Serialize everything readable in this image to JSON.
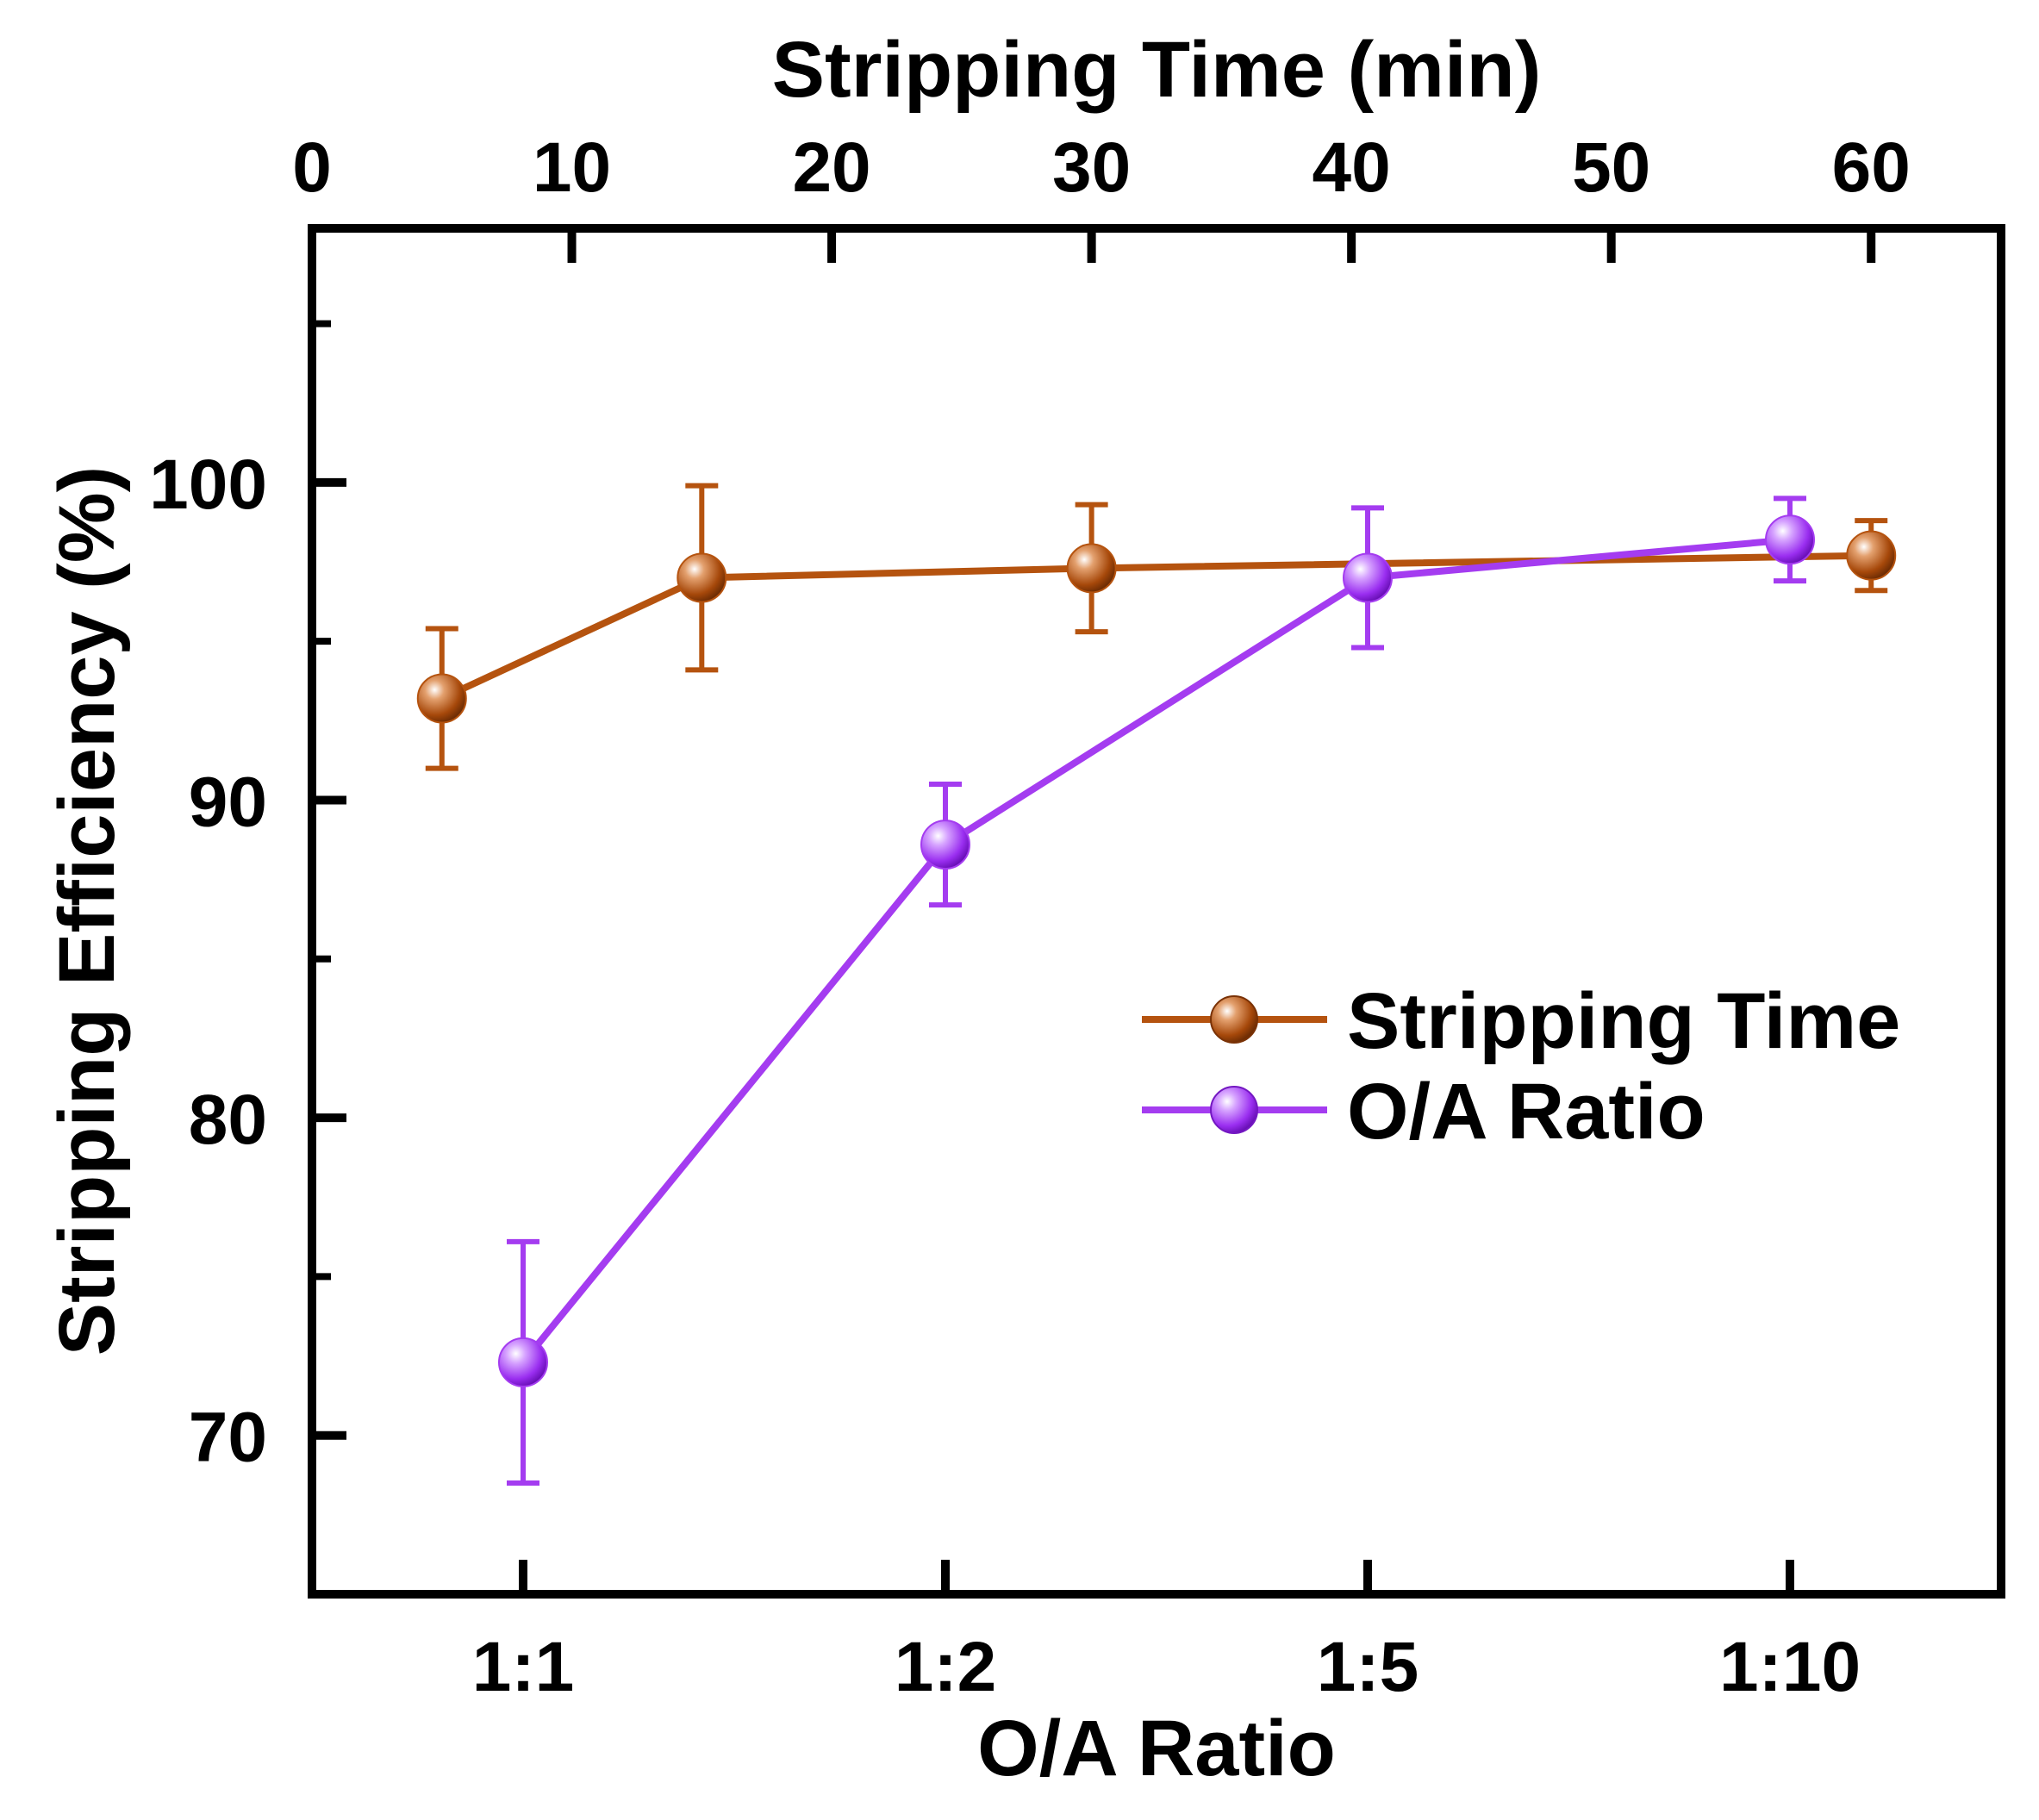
{
  "chart_data": {
    "type": "line",
    "title": "",
    "ylabel": "Stripping Efficiency (%)",
    "ylim": [
      65,
      108
    ],
    "yticks": [
      "70",
      "80",
      "90",
      "100"
    ],
    "y_minor_ticks": [
      75,
      85,
      95,
      105
    ],
    "top_axis": {
      "label": "Stripping Time (min)",
      "xlim": [
        0,
        65
      ],
      "ticks": [
        "0",
        "10",
        "20",
        "30",
        "40",
        "50",
        "60"
      ]
    },
    "bottom_axis": {
      "label": "O/A Ratio",
      "categories": [
        "1:1",
        "1:2",
        "1:5",
        "1:10"
      ],
      "xlim": [
        0.5,
        4.5
      ]
    },
    "series": [
      {
        "name": "Stripping Time",
        "axis": "top",
        "color": "#b5530f",
        "x": [
          5,
          15,
          30,
          60
        ],
        "values": [
          93.2,
          97.0,
          97.3,
          97.7
        ],
        "errors": [
          2.2,
          2.9,
          2.0,
          1.1
        ]
      },
      {
        "name": "O/A Ratio",
        "axis": "bottom",
        "color": "#a43cf0",
        "x": [
          "1:1",
          "1:2",
          "1:5",
          "1:10"
        ],
        "values": [
          72.3,
          88.6,
          97.0,
          98.2
        ],
        "errors": [
          3.8,
          1.9,
          2.2,
          1.3
        ]
      }
    ],
    "legend": {
      "position": "right-center"
    }
  }
}
